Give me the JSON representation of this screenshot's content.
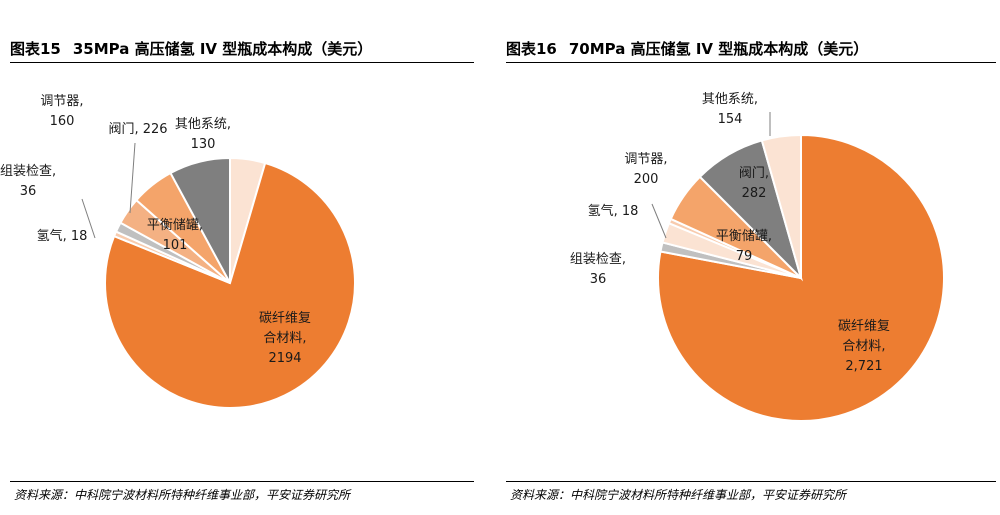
{
  "chart_data": [
    {
      "type": "pie",
      "figure_no": "图表15",
      "title": "35MPa 高压储氢 IV 型瓶成本构成（美元）",
      "source": "资料来源：中科院宁波材料所特种纤维事业部，平安证券研究所",
      "slices": [
        {
          "label": "其他系统,",
          "value_text": "130",
          "value": 130,
          "color": "#fbe3d3"
        },
        {
          "label": "碳纤维复合材料,",
          "label_lines": [
            "碳纤维复",
            "合材料,"
          ],
          "value_text": "2194",
          "value": 2194,
          "color": "#ed7d31"
        },
        {
          "label": "氢气,",
          "value_text": "18",
          "value": 18,
          "color": "#f8cbad"
        },
        {
          "label": "组装检查,",
          "value_text": "36",
          "value": 36,
          "color": "#c0c0c0"
        },
        {
          "label": "平衡储罐,",
          "value_text": "101",
          "value": 101,
          "color": "#f4b183"
        },
        {
          "label": "调节器,",
          "value_text": "160",
          "value": 160,
          "color": "#f4a46a"
        },
        {
          "label": "阀门,",
          "value_text": "226",
          "value": 226,
          "color": "#7f7f7f"
        }
      ]
    },
    {
      "type": "pie",
      "figure_no": "图表16",
      "title": "70MPa 高压储氢 IV 型瓶成本构成（美元）",
      "source": "资料来源：中科院宁波材料所特种纤维事业部，平安证券研究所",
      "slices": [
        {
          "label": "碳纤维复合材料,",
          "label_lines": [
            "碳纤维复",
            "合材料,"
          ],
          "value_text": "2,721",
          "value": 2721,
          "color": "#ed7d31"
        },
        {
          "label": "组装检查,",
          "value_text": "36",
          "value": 36,
          "color": "#c0c0c0"
        },
        {
          "label": "平衡储罐,",
          "value_text": "79",
          "value": 79,
          "color": "#fbe3d3"
        },
        {
          "label": "氢气,",
          "value_text": "18",
          "value": 18,
          "color": "#f8cbad"
        },
        {
          "label": "调节器,",
          "value_text": "200",
          "value": 200,
          "color": "#f4a46a"
        },
        {
          "label": "阀门,",
          "value_text": "282",
          "value": 282,
          "color": "#7f7f7f"
        },
        {
          "label": "其他系统,",
          "value_text": "154",
          "value": 154,
          "color": "#fbe3d3"
        }
      ]
    }
  ]
}
